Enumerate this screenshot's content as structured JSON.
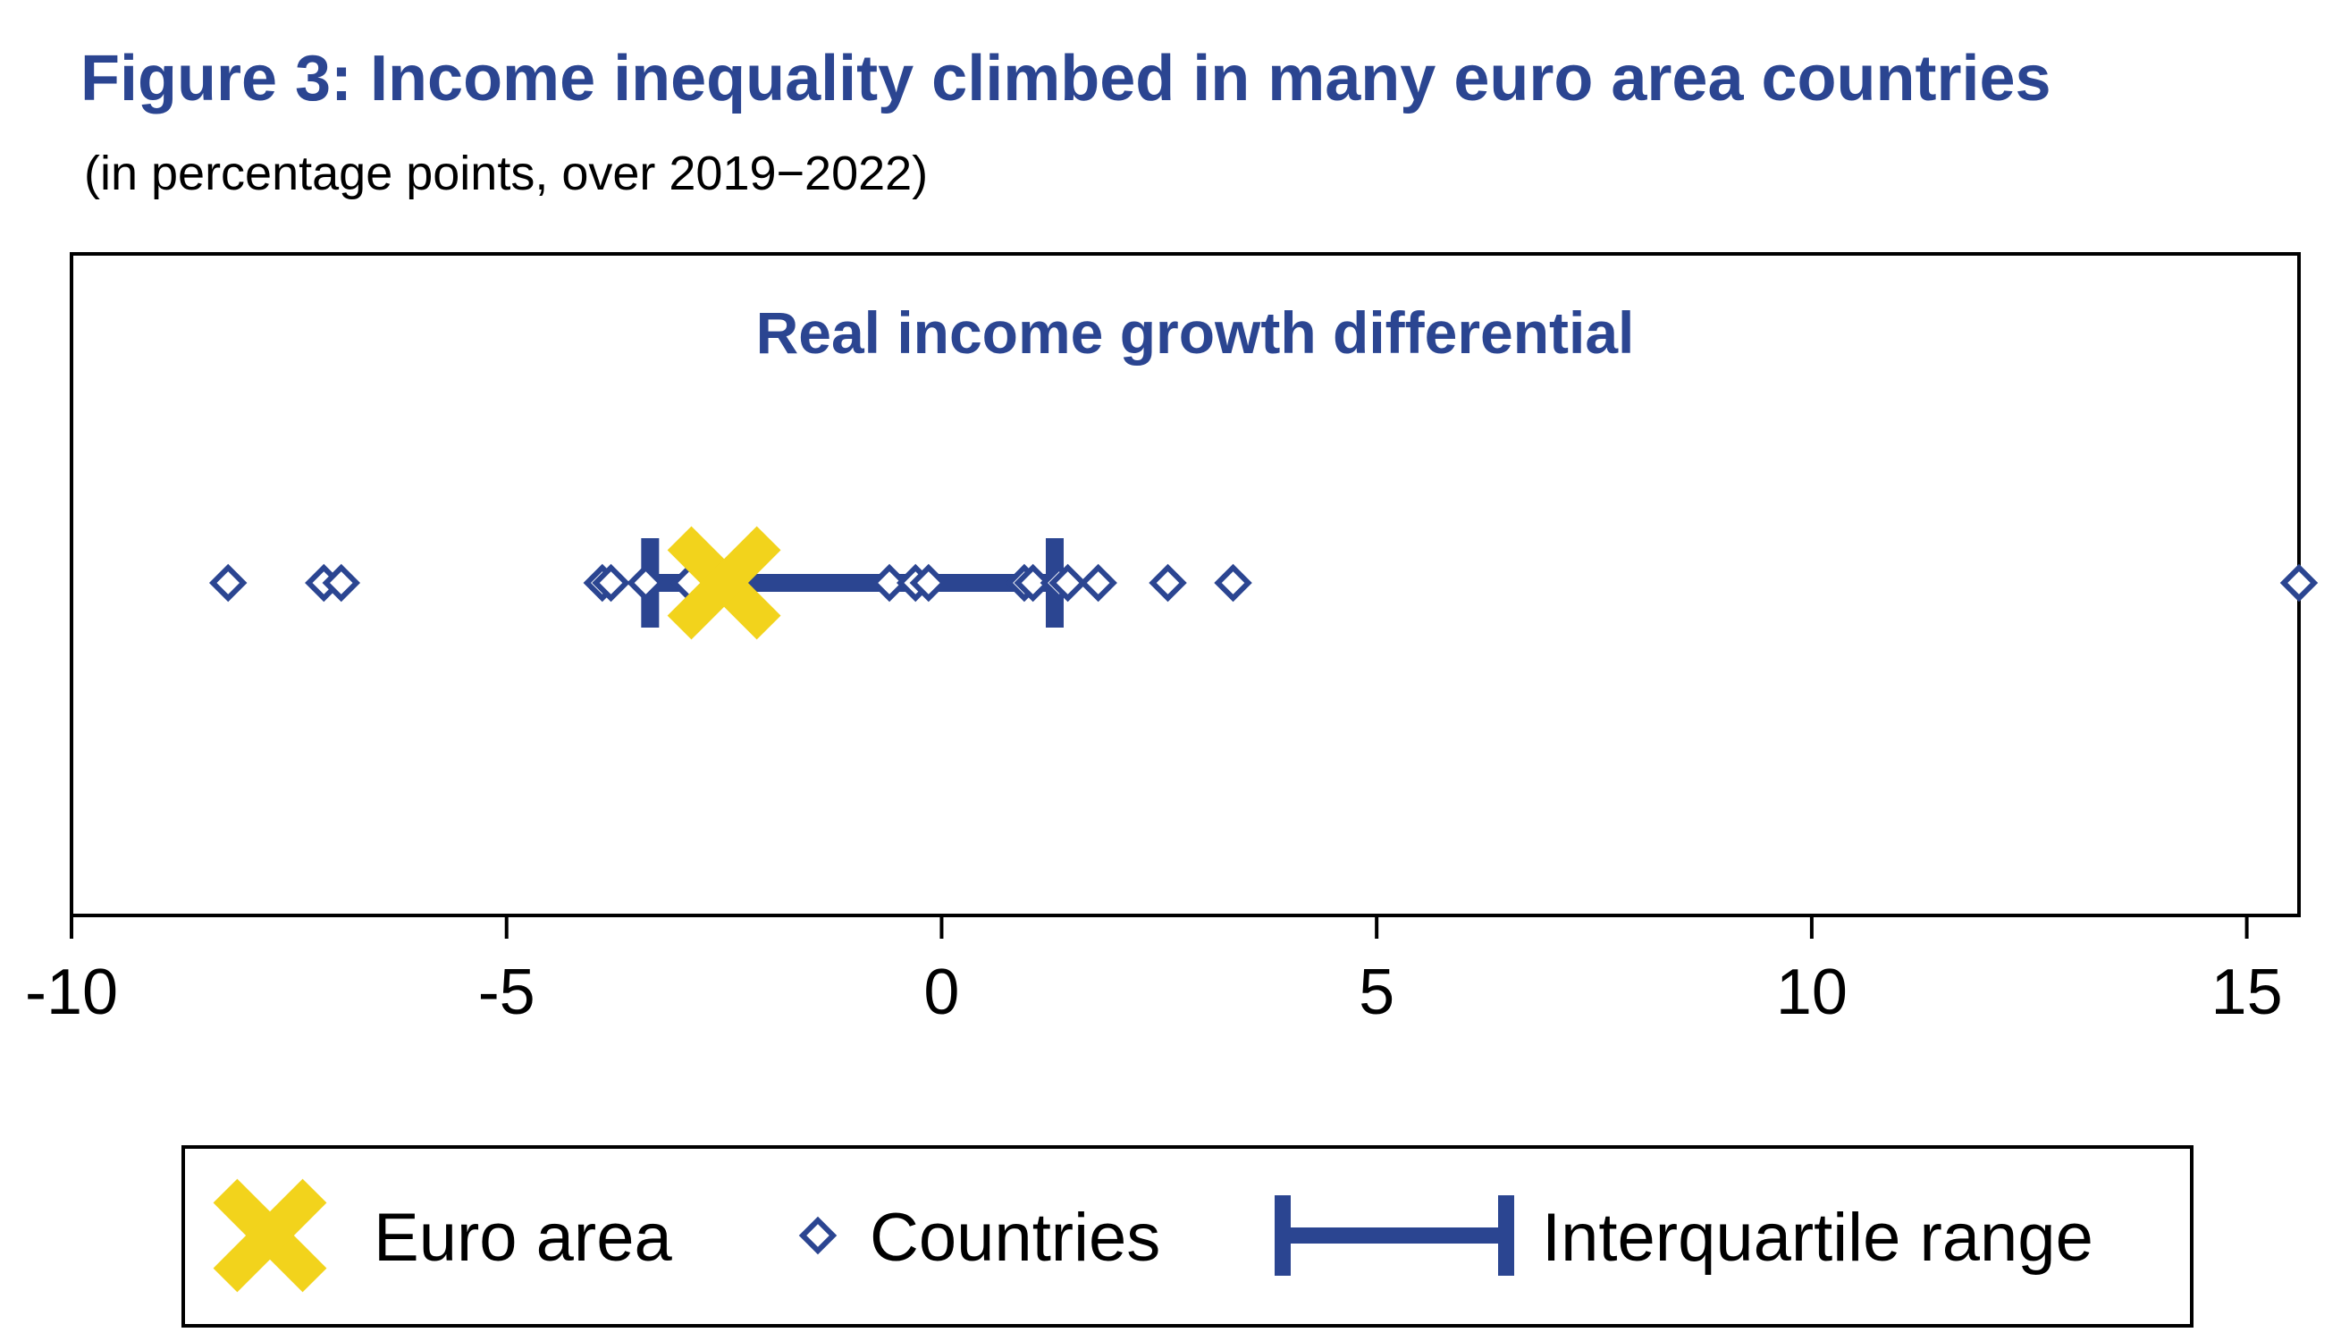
{
  "chart_data": {
    "type": "scatter",
    "title": "Figure 3: Income inequality climbed in many euro area countries",
    "subtitle": "(in percentage points, over 2019−2022)",
    "panel_title": "Real income growth differential",
    "xlim": [
      -10,
      15.6
    ],
    "x_ticks": [
      -10,
      -5,
      0,
      5,
      10,
      15
    ],
    "x_tick_labels": [
      "-10",
      "-5",
      "0",
      "5",
      "10",
      "15"
    ],
    "grid": false,
    "series": [
      {
        "name": "Countries",
        "marker": "diamond",
        "x": [
          -8.2,
          -7.1,
          -6.9,
          -3.9,
          -3.8,
          -3.4,
          -2.9,
          -0.6,
          -0.3,
          -0.15,
          0.95,
          1.05,
          1.35,
          1.45,
          1.8,
          2.6,
          3.35,
          15.6
        ]
      },
      {
        "name": "Euro area",
        "marker": "x",
        "x": [
          -2.5
        ]
      },
      {
        "name": "Interquartile range",
        "marker": "range",
        "low": -3.35,
        "high": 1.3
      }
    ],
    "colors": {
      "countries": "#2b4591",
      "euro_area": "#f2d31c",
      "iqr": "#2b4591",
      "title": "#2b4591"
    },
    "legend": {
      "position": "bottom",
      "items": [
        "Euro area",
        "Countries",
        "Interquartile range"
      ]
    }
  }
}
